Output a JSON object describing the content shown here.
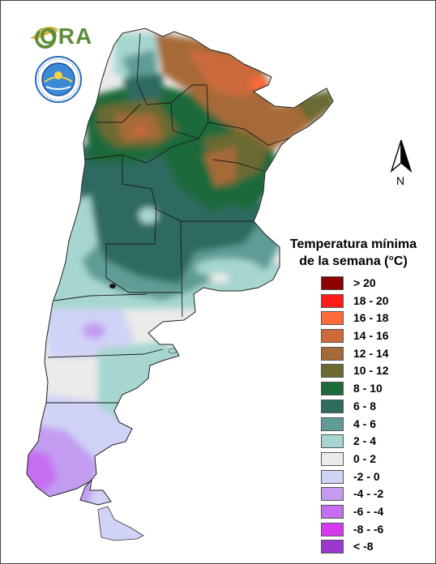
{
  "logo": {
    "ora_text": "ORA",
    "seal_icon": "national-weather-service-seal"
  },
  "north_arrow": {
    "letter": "N",
    "icon": "north-arrow-icon"
  },
  "legend": {
    "title_line1": "Temperatura mínima",
    "title_line2": "de la semana (°C)",
    "items": [
      {
        "label": "> 20",
        "color": "#8b0000"
      },
      {
        "label": "18 - 20",
        "color": "#ff1a1a"
      },
      {
        "label": "16 - 18",
        "color": "#ff6a3a"
      },
      {
        "label": "14 - 16",
        "color": "#cc6a3c"
      },
      {
        "label": "12 - 14",
        "color": "#a66a38"
      },
      {
        "label": "10 - 12",
        "color": "#6a6a32"
      },
      {
        "label": "8 - 10",
        "color": "#1d6b3a"
      },
      {
        "label": "6 - 8",
        "color": "#2f6b5e"
      },
      {
        "label": "4 - 6",
        "color": "#5f9c96"
      },
      {
        "label": "2 - 4",
        "color": "#a6d6cf"
      },
      {
        "label": "0 - 2",
        "color": "#ebebe9"
      },
      {
        "label": "-2 - 0",
        "color": "#d0d2f6"
      },
      {
        "label": "-4 - -2",
        "color": "#c39cf2"
      },
      {
        "label": "-6 - -4",
        "color": "#c66ef0"
      },
      {
        "label": "-8 - -6",
        "color": "#d43bf0"
      },
      {
        "label": "< -8",
        "color": "#9a38cf"
      }
    ]
  }
}
